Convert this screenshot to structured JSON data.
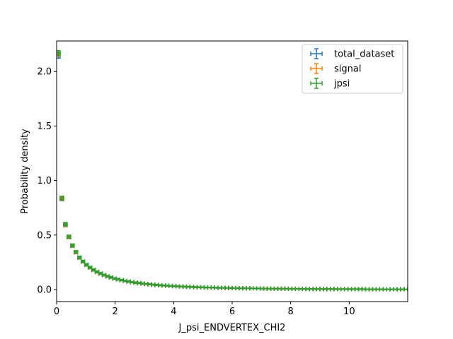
{
  "chart_data": {
    "type": "scatter",
    "title": "",
    "xlabel": "J_psi_ENDVERTEX_CHI2",
    "ylabel": "Probability density",
    "xlim": [
      0,
      12
    ],
    "ylim": [
      -0.11,
      2.28
    ],
    "xticks": [
      0,
      2,
      4,
      6,
      8,
      10
    ],
    "xtick_labels": [
      "0",
      "2",
      "4",
      "6",
      "8",
      "10"
    ],
    "yticks": [
      0.0,
      0.5,
      1.0,
      1.5,
      2.0
    ],
    "ytick_labels": [
      "0.0",
      "0.5",
      "1.0",
      "1.5",
      "2.0"
    ],
    "grid": false,
    "legend_position": "top-right",
    "marker": "errorbar",
    "x_bin_halfwidth": 0.06,
    "x": [
      0.06,
      0.18,
      0.3,
      0.42,
      0.54,
      0.66,
      0.78,
      0.9,
      1.02,
      1.14,
      1.26,
      1.38,
      1.5,
      1.62,
      1.74,
      1.86,
      1.98,
      2.1,
      2.22,
      2.34,
      2.46,
      2.58,
      2.7,
      2.82,
      2.94,
      3.06,
      3.18,
      3.3,
      3.42,
      3.54,
      3.66,
      3.78,
      3.9,
      4.02,
      4.14,
      4.26,
      4.38,
      4.5,
      4.62,
      4.74,
      4.86,
      4.98,
      5.1,
      5.22,
      5.34,
      5.46,
      5.58,
      5.7,
      5.82,
      5.94,
      6.06,
      6.18,
      6.3,
      6.42,
      6.54,
      6.66,
      6.78,
      6.9,
      7.02,
      7.14,
      7.26,
      7.38,
      7.5,
      7.62,
      7.74,
      7.86,
      7.98,
      8.1,
      8.22,
      8.34,
      8.46,
      8.58,
      8.7,
      8.82,
      8.94,
      9.06,
      9.18,
      9.3,
      9.42,
      9.54,
      9.66,
      9.78,
      9.9,
      10.02,
      10.14,
      10.26,
      10.38,
      10.5,
      10.62,
      10.74,
      10.86,
      10.98,
      11.1,
      11.22,
      11.34,
      11.46,
      11.58,
      11.7,
      11.82,
      11.94
    ],
    "series": [
      {
        "name": "total_dataset",
        "color": "#1f77b4",
        "y": [
          2.14,
          0.83,
          0.59,
          0.48,
          0.4,
          0.34,
          0.29,
          0.255,
          0.225,
          0.2,
          0.178,
          0.16,
          0.145,
          0.132,
          0.12,
          0.11,
          0.1,
          0.092,
          0.085,
          0.078,
          0.072,
          0.067,
          0.062,
          0.058,
          0.054,
          0.05,
          0.047,
          0.044,
          0.041,
          0.039,
          0.036,
          0.034,
          0.032,
          0.03,
          0.029,
          0.027,
          0.026,
          0.024,
          0.023,
          0.022,
          0.021,
          0.02,
          0.019,
          0.018,
          0.017,
          0.016,
          0.016,
          0.015,
          0.014,
          0.014,
          0.013,
          0.012,
          0.012,
          0.011,
          0.011,
          0.01,
          0.01,
          0.01,
          0.009,
          0.009,
          0.009,
          0.008,
          0.008,
          0.008,
          0.007,
          0.007,
          0.007,
          0.007,
          0.006,
          0.006,
          0.006,
          0.006,
          0.006,
          0.005,
          0.005,
          0.005,
          0.005,
          0.005,
          0.005,
          0.004,
          0.004,
          0.004,
          0.004,
          0.004,
          0.004,
          0.004,
          0.004,
          0.003,
          0.003,
          0.003,
          0.003,
          0.003,
          0.003,
          0.003,
          0.003,
          0.003,
          0.003,
          0.003,
          0.003,
          0.003
        ],
        "yerr": [
          0.018,
          0.015,
          0.013,
          0.012,
          0.011,
          0.01,
          0.01,
          0.009,
          0.009,
          0.008,
          0.008,
          0.007,
          0.007,
          0.007,
          0.006,
          0.006,
          0.006,
          0.006,
          0.005,
          0.005,
          0.005,
          0.005,
          0.005,
          0.004,
          0.004,
          0.004,
          0.004,
          0.004,
          0.004,
          0.004,
          0.003,
          0.003,
          0.003,
          0.003,
          0.003,
          0.003,
          0.003,
          0.003,
          0.003,
          0.003,
          0.003,
          0.003,
          0.003,
          0.002,
          0.002,
          0.002,
          0.002,
          0.002,
          0.002,
          0.002,
          0.002,
          0.002,
          0.002,
          0.002,
          0.002,
          0.002,
          0.002,
          0.002,
          0.002,
          0.002,
          0.002,
          0.002,
          0.002,
          0.002,
          0.002,
          0.002,
          0.002,
          0.002,
          0.002,
          0.002,
          0.002,
          0.002,
          0.002,
          0.002,
          0.002,
          0.002,
          0.002,
          0.002,
          0.002,
          0.002,
          0.002,
          0.002,
          0.002,
          0.002,
          0.002,
          0.002,
          0.002,
          0.002,
          0.002,
          0.002,
          0.002,
          0.002,
          0.002,
          0.002,
          0.002,
          0.002,
          0.002,
          0.002,
          0.002,
          0.002
        ]
      },
      {
        "name": "signal",
        "color": "#ff7f0e",
        "y": [
          2.16,
          0.835,
          0.595,
          0.482,
          0.402,
          0.342,
          0.292,
          0.256,
          0.226,
          0.201,
          0.179,
          0.161,
          0.146,
          0.133,
          0.121,
          0.111,
          0.101,
          0.093,
          0.086,
          0.079,
          0.073,
          0.068,
          0.063,
          0.059,
          0.055,
          0.051,
          0.048,
          0.045,
          0.042,
          0.039,
          0.037,
          0.035,
          0.033,
          0.031,
          0.029,
          0.028,
          0.026,
          0.025,
          0.024,
          0.022,
          0.021,
          0.02,
          0.019,
          0.018,
          0.018,
          0.017,
          0.016,
          0.015,
          0.015,
          0.014,
          0.013,
          0.013,
          0.012,
          0.012,
          0.011,
          0.011,
          0.01,
          0.01,
          0.01,
          0.009,
          0.009,
          0.009,
          0.008,
          0.008,
          0.008,
          0.007,
          0.007,
          0.007,
          0.007,
          0.006,
          0.006,
          0.006,
          0.006,
          0.006,
          0.005,
          0.005,
          0.005,
          0.005,
          0.005,
          0.005,
          0.004,
          0.004,
          0.004,
          0.004,
          0.004,
          0.004,
          0.004,
          0.004,
          0.003,
          0.003,
          0.003,
          0.003,
          0.003,
          0.003,
          0.003,
          0.003,
          0.003,
          0.003,
          0.003,
          0.003
        ],
        "yerr": [
          0.02,
          0.016,
          0.014,
          0.013,
          0.012,
          0.011,
          0.01,
          0.01,
          0.009,
          0.009,
          0.008,
          0.008,
          0.007,
          0.007,
          0.007,
          0.006,
          0.006,
          0.006,
          0.006,
          0.005,
          0.005,
          0.005,
          0.005,
          0.005,
          0.004,
          0.004,
          0.004,
          0.004,
          0.004,
          0.004,
          0.004,
          0.003,
          0.003,
          0.003,
          0.003,
          0.003,
          0.003,
          0.003,
          0.003,
          0.003,
          0.003,
          0.003,
          0.003,
          0.003,
          0.003,
          0.002,
          0.002,
          0.002,
          0.002,
          0.002,
          0.002,
          0.002,
          0.002,
          0.002,
          0.002,
          0.002,
          0.002,
          0.002,
          0.002,
          0.002,
          0.002,
          0.002,
          0.002,
          0.002,
          0.002,
          0.002,
          0.002,
          0.002,
          0.002,
          0.002,
          0.002,
          0.002,
          0.002,
          0.002,
          0.002,
          0.002,
          0.002,
          0.002,
          0.002,
          0.002,
          0.002,
          0.002,
          0.002,
          0.002,
          0.002,
          0.002,
          0.002,
          0.002,
          0.002,
          0.002,
          0.002,
          0.002,
          0.002,
          0.002,
          0.002,
          0.002,
          0.002,
          0.002,
          0.002,
          0.002
        ]
      },
      {
        "name": "jpsi",
        "color": "#2ca02c",
        "y": [
          2.17,
          0.84,
          0.6,
          0.485,
          0.405,
          0.345,
          0.295,
          0.258,
          0.228,
          0.203,
          0.181,
          0.163,
          0.148,
          0.134,
          0.122,
          0.112,
          0.102,
          0.094,
          0.087,
          0.08,
          0.074,
          0.069,
          0.064,
          0.06,
          0.056,
          0.052,
          0.049,
          0.046,
          0.043,
          0.04,
          0.038,
          0.036,
          0.034,
          0.032,
          0.03,
          0.028,
          0.027,
          0.025,
          0.024,
          0.023,
          0.022,
          0.021,
          0.02,
          0.019,
          0.018,
          0.017,
          0.016,
          0.016,
          0.015,
          0.014,
          0.014,
          0.013,
          0.012,
          0.012,
          0.011,
          0.011,
          0.01,
          0.01,
          0.01,
          0.009,
          0.009,
          0.009,
          0.008,
          0.008,
          0.008,
          0.007,
          0.007,
          0.007,
          0.007,
          0.006,
          0.006,
          0.006,
          0.006,
          0.006,
          0.005,
          0.005,
          0.005,
          0.005,
          0.005,
          0.005,
          0.004,
          0.004,
          0.004,
          0.004,
          0.004,
          0.004,
          0.004,
          0.004,
          0.003,
          0.003,
          0.003,
          0.003,
          0.003,
          0.003,
          0.003,
          0.003,
          0.003,
          0.003,
          0.003,
          0.003
        ],
        "yerr": [
          0.022,
          0.017,
          0.015,
          0.014,
          0.013,
          0.012,
          0.011,
          0.01,
          0.01,
          0.009,
          0.009,
          0.008,
          0.008,
          0.007,
          0.007,
          0.007,
          0.006,
          0.006,
          0.006,
          0.006,
          0.005,
          0.005,
          0.005,
          0.005,
          0.005,
          0.004,
          0.004,
          0.004,
          0.004,
          0.004,
          0.004,
          0.004,
          0.003,
          0.003,
          0.003,
          0.003,
          0.003,
          0.003,
          0.003,
          0.003,
          0.003,
          0.003,
          0.003,
          0.003,
          0.003,
          0.003,
          0.003,
          0.002,
          0.002,
          0.002,
          0.002,
          0.002,
          0.002,
          0.002,
          0.002,
          0.002,
          0.002,
          0.002,
          0.002,
          0.002,
          0.002,
          0.002,
          0.002,
          0.002,
          0.002,
          0.002,
          0.002,
          0.002,
          0.002,
          0.002,
          0.002,
          0.002,
          0.002,
          0.002,
          0.002,
          0.002,
          0.002,
          0.002,
          0.002,
          0.002,
          0.002,
          0.002,
          0.002,
          0.002,
          0.002,
          0.002,
          0.002,
          0.002,
          0.002,
          0.002,
          0.002,
          0.002,
          0.002,
          0.002,
          0.002,
          0.002,
          0.002,
          0.002,
          0.002,
          0.002
        ]
      }
    ]
  }
}
